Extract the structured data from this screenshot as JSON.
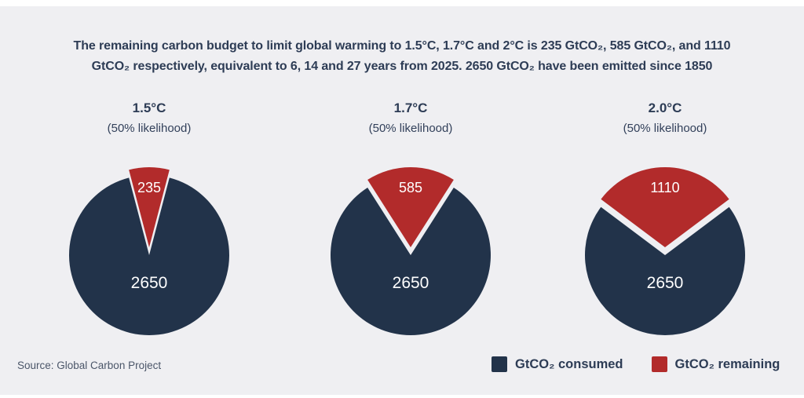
{
  "page": {
    "background": "#ffffff",
    "panel_background": "#efeff2",
    "accent_navy": "#22334a",
    "accent_red": "#b22b2b"
  },
  "title": {
    "line1": "The remaining carbon budget to limit global warming to 1.5°C, 1.7°C and 2°C is 235 GtCO₂, 585 GtCO₂, and 1110",
    "line2": "GtCO₂ respectively, equivalent to 6, 14 and 27 years from 2025. 2650 GtCO₂ have been emitted since 1850"
  },
  "source": "Source: Global Carbon Project",
  "legend": {
    "items": [
      {
        "label": "GtCO₂ consumed",
        "color": "#22334a"
      },
      {
        "label": "GtCO₂ remaining",
        "color": "#b22b2b"
      }
    ]
  },
  "chart_data": {
    "type": "pie",
    "legend_position": "bottom-right",
    "notes": "Three pies; remaining slice centered at 12 o'clock, exploded radially upward with white gap; value labels in white inside slices",
    "charts": [
      {
        "heading": "1.5°C",
        "subheading": "(50% likelihood)",
        "slices": [
          {
            "name": "GtCO₂ consumed",
            "value": 2650,
            "color": "#22334a",
            "exploded": false
          },
          {
            "name": "GtCO₂ remaining",
            "value": 235,
            "color": "#b22b2b",
            "exploded": true
          }
        ]
      },
      {
        "heading": "1.7°C",
        "subheading": "(50% likelihood)",
        "slices": [
          {
            "name": "GtCO₂ consumed",
            "value": 2650,
            "color": "#22334a",
            "exploded": false
          },
          {
            "name": "GtCO₂ remaining",
            "value": 585,
            "color": "#b22b2b",
            "exploded": true
          }
        ]
      },
      {
        "heading": "2.0°C",
        "subheading": "(50% likelihood)",
        "slices": [
          {
            "name": "GtCO₂ consumed",
            "value": 2650,
            "color": "#22334a",
            "exploded": false
          },
          {
            "name": "GtCO₂ remaining",
            "value": 1110,
            "color": "#b22b2b",
            "exploded": true
          }
        ]
      }
    ]
  }
}
